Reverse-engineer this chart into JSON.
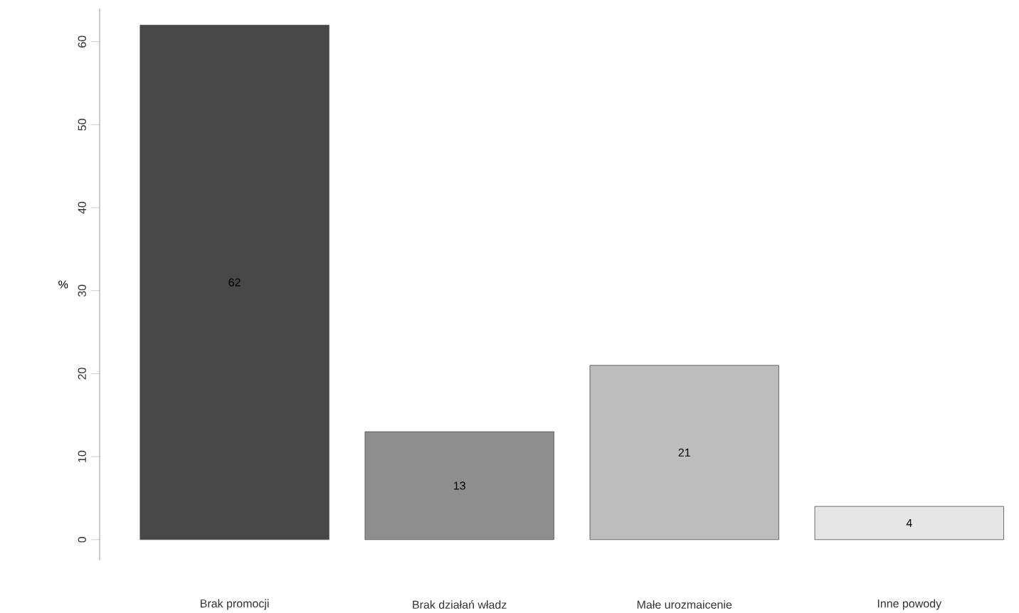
{
  "chart_data": {
    "type": "bar",
    "ylabel": "%",
    "categories": [
      "Brak promocji",
      "Brak działań władz",
      "Małe urozmaicenie",
      "Inne powody"
    ],
    "values": [
      62,
      13,
      21,
      4
    ],
    "colors": [
      "#474747",
      "#8e8e8e",
      "#bdbdbd",
      "#e6e6e6"
    ],
    "ylim": [
      -2.5,
      64
    ],
    "yticks": [
      0,
      10,
      20,
      30,
      40,
      50,
      60
    ],
    "data_labels": true
  }
}
